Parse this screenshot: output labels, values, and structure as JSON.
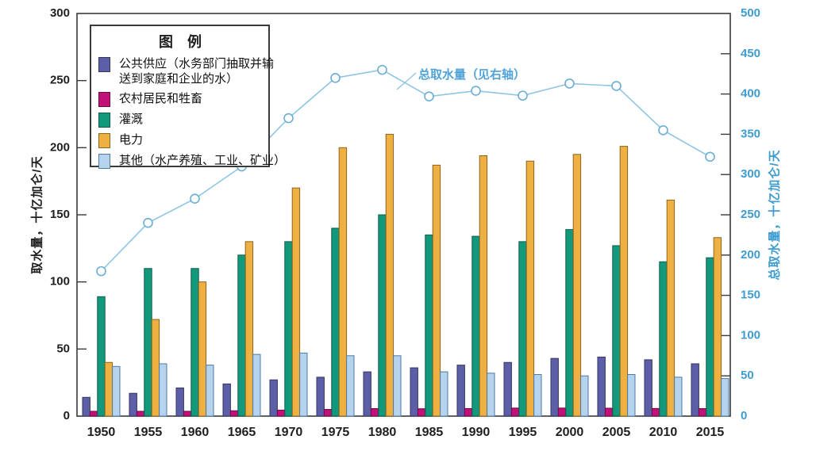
{
  "chart_data": {
    "type": "bar",
    "title": "",
    "categories": [
      "1950",
      "1955",
      "1960",
      "1965",
      "1970",
      "1975",
      "1980",
      "1985",
      "1990",
      "1995",
      "2000",
      "2005",
      "2010",
      "2015"
    ],
    "series": [
      {
        "name": "公共供应（水务部门抽取并输送到家庭和企业的水）",
        "color": "#5c5fa8",
        "stroke": "#35355e",
        "values": [
          14,
          17,
          21,
          24,
          27,
          29,
          33,
          36,
          38,
          40,
          43,
          44,
          42,
          39
        ]
      },
      {
        "name": "农村居民和牲畜",
        "color": "#c11077",
        "stroke": "#6e0a45",
        "values": [
          3.6,
          3.6,
          3.6,
          4,
          4.5,
          5,
          5.6,
          5.5,
          5.6,
          6,
          6,
          5.9,
          5.7,
          5.6
        ]
      },
      {
        "name": "灌溉",
        "color": "#12997b",
        "stroke": "#0b5c4b",
        "values": [
          89,
          110,
          110,
          120,
          130,
          140,
          150,
          135,
          134,
          130,
          139,
          127,
          115,
          118
        ]
      },
      {
        "name": "电力",
        "color": "#efb042",
        "stroke": "#8a6420",
        "values": [
          40,
          72,
          100,
          130,
          170,
          200,
          210,
          187,
          194,
          190,
          195,
          201,
          161,
          133
        ]
      },
      {
        "name": "其他（水产养殖、工业、矿业）",
        "color": "#b5d3ec",
        "stroke": "#4d7aa8",
        "values": [
          37,
          39,
          38,
          46,
          47,
          45,
          45,
          33,
          32,
          31,
          30,
          31,
          29,
          28
        ]
      }
    ],
    "line_series": {
      "name": "总取水量（见右轴）",
      "axis": "right",
      "color": "#8fc5e4",
      "marker_stroke": "#6aaed6",
      "marker_fill": "#ffffff",
      "values": [
        180,
        240,
        270,
        310,
        370,
        420,
        430,
        397,
        404,
        398,
        413,
        410,
        355,
        322
      ]
    },
    "left_axis": {
      "title": "取水量，十亿加仑/天",
      "min": 0,
      "max": 300,
      "step": 50,
      "tick_labels": [
        "0",
        "50",
        "100",
        "150",
        "200",
        "250",
        "300"
      ],
      "color": "#1f1f1f"
    },
    "right_axis": {
      "title": "总取水量，十亿加仑/天",
      "min": 0,
      "max": 500,
      "step": 50,
      "tick_labels": [
        "0",
        "50",
        "100",
        "150",
        "200",
        "250",
        "300",
        "350",
        "400",
        "450",
        "500"
      ],
      "color": "#3e9cd0"
    },
    "legend": {
      "title": "图　例",
      "items": [
        {
          "series": 0,
          "lines": [
            "公共供应（水务部门抽取并输",
            "送到家庭和企业的水）"
          ]
        },
        {
          "series": 1,
          "lines": [
            "农村居民和牲畜"
          ]
        },
        {
          "series": 2,
          "lines": [
            "灌溉"
          ]
        },
        {
          "series": 3,
          "lines": [
            "电力"
          ]
        },
        {
          "series": 4,
          "lines": [
            "其他（水产养殖、工业、矿业）"
          ]
        }
      ]
    },
    "annotation": {
      "text": "总取水量（见右轴）"
    },
    "grid": "off",
    "legend_position": "top-left-inside"
  }
}
